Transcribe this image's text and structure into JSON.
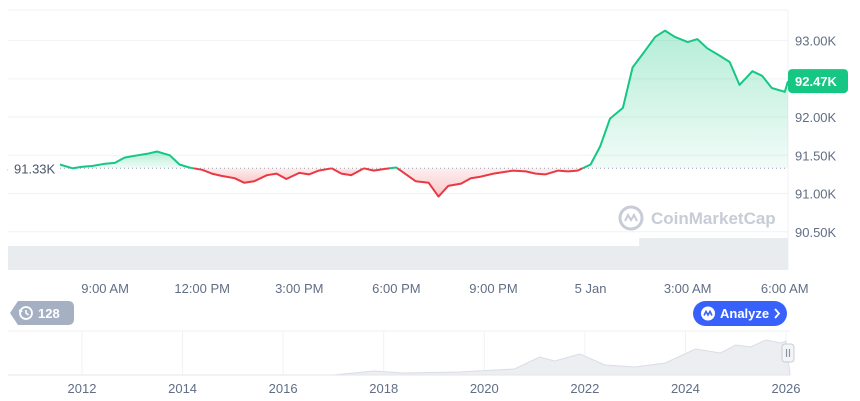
{
  "chart_data": {
    "type": "line",
    "y_ticks": [
      "93.00K",
      "92.50K",
      "92.00K",
      "91.50K",
      "91.00K",
      "90.50K"
    ],
    "y_tick_values": [
      93000,
      92500,
      92000,
      91500,
      91000,
      90500
    ],
    "ylim": [
      90000,
      93400
    ],
    "x_ticks": [
      "9:00 AM",
      "12:00 PM",
      "3:00 PM",
      "6:00 PM",
      "9:00 PM",
      "5 Jan",
      "3:00 AM",
      "6:00 AM"
    ],
    "x_tick_hours": [
      9,
      12,
      15,
      18,
      21,
      24,
      27,
      30
    ],
    "xlim_hours": [
      6.0,
      30.1
    ],
    "baseline": {
      "value": 91330,
      "label": "91.33K"
    },
    "current_price": {
      "value": 92470,
      "label": "92.47K"
    },
    "grid": true,
    "colors": {
      "up": "#16c784",
      "down": "#ea3943",
      "up_fill": "#16c784",
      "down_fill": "#ea3943",
      "badge": "#16c784",
      "volume": "#e9ecef"
    },
    "series": [
      {
        "hours": [
          6.0,
          6.3,
          6.6,
          7.0,
          7.3,
          7.6,
          8.0,
          8.3,
          8.6,
          9.0,
          9.3,
          9.6,
          10.0,
          10.3,
          10.6,
          11.0,
          11.3,
          11.6,
          12.0,
          12.3,
          12.6,
          13.0,
          13.3,
          13.6,
          14.0,
          14.3,
          14.6,
          15.0,
          15.3,
          15.6,
          16.0,
          16.3,
          16.6,
          17.0,
          17.3,
          17.6,
          18.0,
          18.3,
          18.6,
          19.0,
          19.3,
          19.6,
          20.0,
          20.3,
          20.6,
          21.0,
          21.3,
          21.6,
          22.0,
          22.3,
          22.6,
          23.0,
          23.3,
          23.6,
          24.0,
          24.3,
          24.6,
          25.0,
          25.3,
          25.6,
          26.0,
          26.3,
          26.6,
          27.0,
          27.3,
          27.6,
          28.0,
          28.3,
          28.6,
          29.0,
          29.3,
          29.6,
          30.0,
          30.1
        ],
        "prices": [
          91300,
          91400,
          91370,
          91340,
          91360,
          91380,
          91330,
          91350,
          91360,
          91390,
          91400,
          91470,
          91500,
          91520,
          91550,
          91500,
          91380,
          91340,
          91310,
          91260,
          91230,
          91200,
          91140,
          91160,
          91240,
          91260,
          91190,
          91270,
          91250,
          91300,
          91330,
          91260,
          91240,
          91330,
          91300,
          91320,
          91340,
          91250,
          91160,
          91140,
          90960,
          91100,
          91130,
          91200,
          91220,
          91260,
          91280,
          91300,
          91290,
          91260,
          91250,
          91300,
          91290,
          91300,
          91380,
          91620,
          91980,
          92120,
          92650,
          92820,
          93050,
          93130,
          93050,
          92980,
          93020,
          92900,
          92800,
          92720,
          92420,
          92600,
          92540,
          92380,
          92330,
          92470
        ]
      }
    ],
    "navigator": {
      "x_ticks": [
        "2012",
        "2014",
        "2016",
        "2018",
        "2020",
        "2022",
        "2024",
        "2026"
      ]
    }
  },
  "ui": {
    "watermark": "CoinMarketCap",
    "history_badge": "128",
    "analyze_button": "Analyze"
  }
}
